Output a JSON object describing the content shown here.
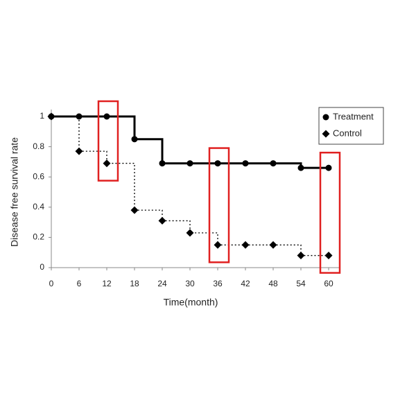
{
  "chart_data": {
    "type": "step",
    "x_label": "Time(month)",
    "y_label": "Disease free survival rate",
    "x": [
      0,
      6,
      12,
      18,
      24,
      30,
      36,
      42,
      48,
      54,
      60
    ],
    "series": [
      {
        "name": "Treatment",
        "color": "#000000",
        "marker": "circle",
        "line": "solid",
        "values": [
          1,
          1,
          1,
          0.85,
          0.69,
          0.69,
          0.69,
          0.69,
          0.69,
          0.66,
          0.66
        ]
      },
      {
        "name": "Control",
        "color": "#000000",
        "marker": "diamond",
        "line": "dotted",
        "values": [
          1,
          0.77,
          0.69,
          0.38,
          0.31,
          0.23,
          0.15,
          0.15,
          0.15,
          0.08,
          0.08
        ]
      }
    ],
    "highlight_x": [
      12,
      36,
      60
    ],
    "highlight_color": "#e02020",
    "xlim": [
      0,
      60
    ],
    "xticks": [
      0,
      6,
      12,
      18,
      24,
      30,
      36,
      42,
      48,
      54,
      60
    ],
    "ylim": [
      0,
      1
    ],
    "yticks": [
      0,
      0.2,
      0.4,
      0.6,
      0.8,
      1
    ],
    "legend": "top-right"
  }
}
